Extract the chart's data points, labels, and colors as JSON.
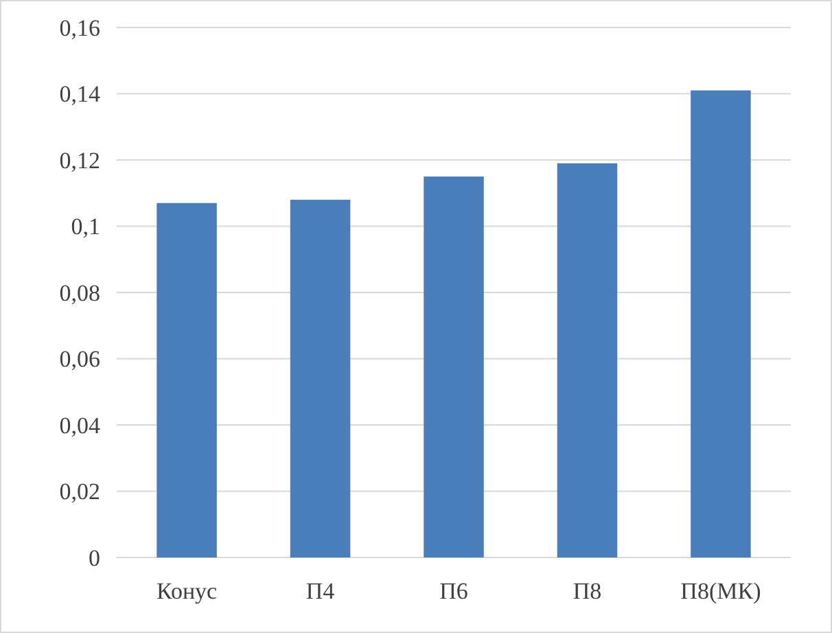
{
  "chart_data": {
    "type": "bar",
    "categories": [
      "Конус",
      "П4",
      "П6",
      "П8",
      "П8(МК)"
    ],
    "values": [
      0.107,
      0.108,
      0.115,
      0.119,
      0.141
    ],
    "color": "#4a7ebb",
    "ylim": [
      0,
      0.16
    ],
    "yticks": [
      {
        "value": 0,
        "label": "0"
      },
      {
        "value": 0.02,
        "label": "0,02"
      },
      {
        "value": 0.04,
        "label": "0,04"
      },
      {
        "value": 0.06,
        "label": "0,06"
      },
      {
        "value": 0.08,
        "label": "0,08"
      },
      {
        "value": 0.1,
        "label": "0,1"
      },
      {
        "value": 0.12,
        "label": "0,12"
      },
      {
        "value": 0.14,
        "label": "0,14"
      },
      {
        "value": 0.16,
        "label": "0,16"
      }
    ],
    "grid": "y"
  }
}
